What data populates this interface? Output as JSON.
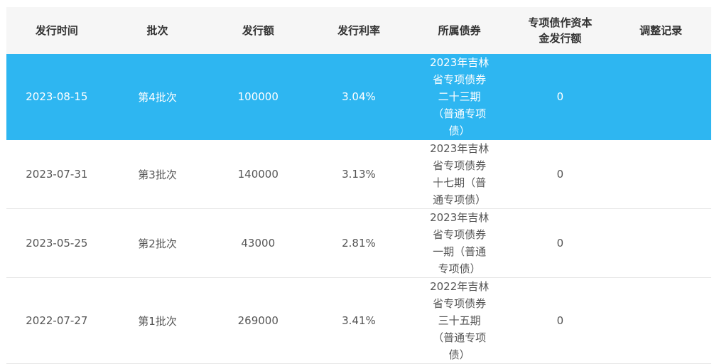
{
  "columns": [
    "发行时间",
    "批次",
    "发行额",
    "发行利率",
    "所属债券",
    "专项债作资本金发行额",
    "调整记录"
  ],
  "rows": [
    {
      "date": "2023-08-15",
      "batch": "第4批次",
      "amount": "100000",
      "rate": "3.04%",
      "bond": "2023年吉林省专项债券二十三期（普通专项债）",
      "capital": "0",
      "record": "",
      "selected": true
    },
    {
      "date": "2023-07-31",
      "batch": "第3批次",
      "amount": "140000",
      "rate": "3.13%",
      "bond": "2023年吉林省专项债券十七期（普通专项债）",
      "capital": "0",
      "record": "",
      "selected": false
    },
    {
      "date": "2023-05-25",
      "batch": "第2批次",
      "amount": "43000",
      "rate": "2.81%",
      "bond": "2023年吉林省专项债券一期（普通专项债）",
      "capital": "0",
      "record": "",
      "selected": false
    },
    {
      "date": "2022-07-27",
      "batch": "第1批次",
      "amount": "269000",
      "rate": "3.41%",
      "bond": "2022年吉林省专项债券三十五期（普通专项债）",
      "capital": "0",
      "record": "",
      "selected": false
    }
  ],
  "colors": {
    "selected_row": "#2eb6f1",
    "header_bg": "#f6f6f6"
  }
}
